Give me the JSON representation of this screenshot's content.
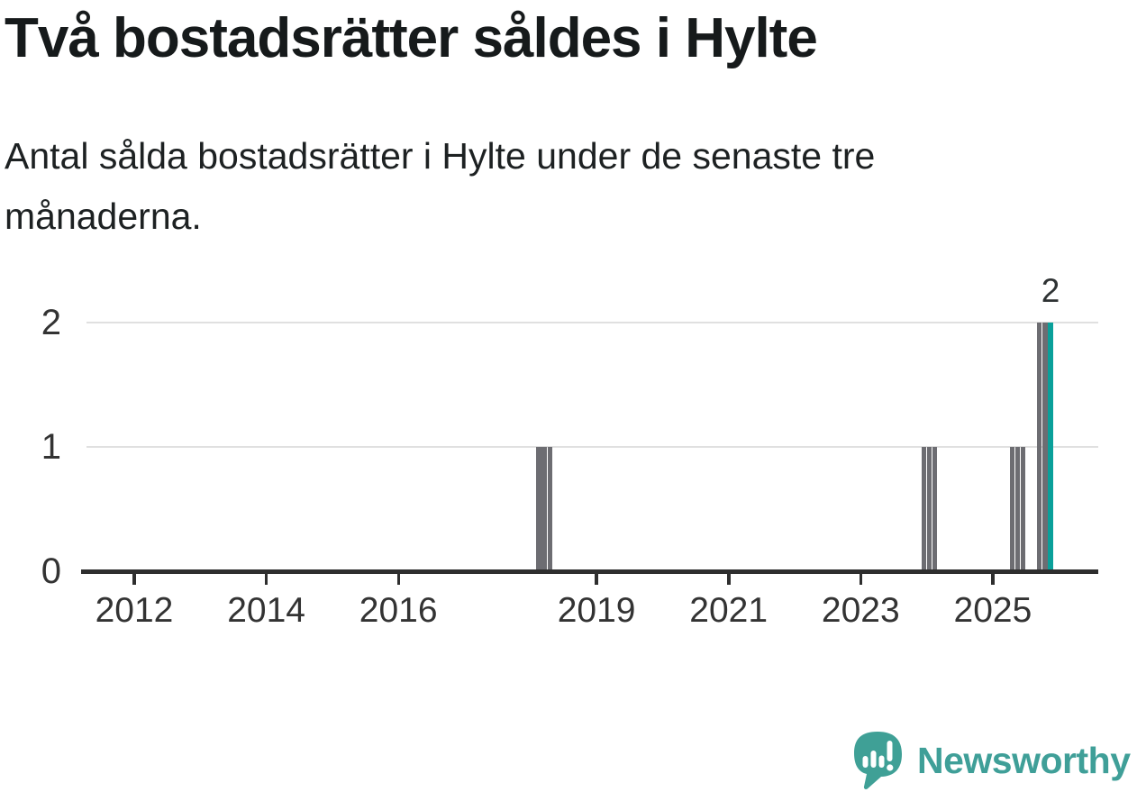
{
  "header": {
    "title": "Två bostadsrätter såldes i Hylte",
    "subtitle": "Antal sålda bostadsrätter i Hylte under de senaste tre månaderna.",
    "subtitle_lines": [
      "Antal sålda bostadsrätter i Hylte under de senaste tre",
      "månaderna."
    ]
  },
  "chart_data": {
    "type": "bar",
    "title": "Två bostadsrätter såldes i Hylte",
    "xlabel": "",
    "ylabel": "",
    "y_ticks": [
      0,
      1,
      2
    ],
    "ylim": [
      0,
      2.2
    ],
    "gridlines_at": [
      1,
      2
    ],
    "x_tick_years": [
      2012,
      2014,
      2016,
      2019,
      2021,
      2023,
      2025
    ],
    "x_range_years": [
      2011.2,
      2026.6
    ],
    "grid": "horizontal-only",
    "legend": "none",
    "bars": [
      {
        "month": "2018-02",
        "value": 1
      },
      {
        "month": "2018-03",
        "value": 1
      },
      {
        "month": "2018-04",
        "value": 1
      },
      {
        "month": "2023-12",
        "value": 1
      },
      {
        "month": "2024-01",
        "value": 1
      },
      {
        "month": "2024-02",
        "value": 1
      },
      {
        "month": "2025-04",
        "value": 1
      },
      {
        "month": "2025-05",
        "value": 1
      },
      {
        "month": "2025-06",
        "value": 1
      },
      {
        "month": "2025-09",
        "value": 2
      },
      {
        "month": "2025-10",
        "value": 2
      },
      {
        "month": "2025-11",
        "value": 2,
        "highlight": true,
        "label": "2"
      }
    ],
    "colors": {
      "bar": "#6d6d72",
      "highlight": "#0aa09a",
      "axis": "#2e2e2e",
      "gridline": "#e0e0e0",
      "tick_text": "#333333"
    }
  },
  "branding": {
    "name": "Newsworthy",
    "logo_icon": "newsworthy-speech-bubble-bar-chart-icon",
    "color": "#3f9f98"
  }
}
